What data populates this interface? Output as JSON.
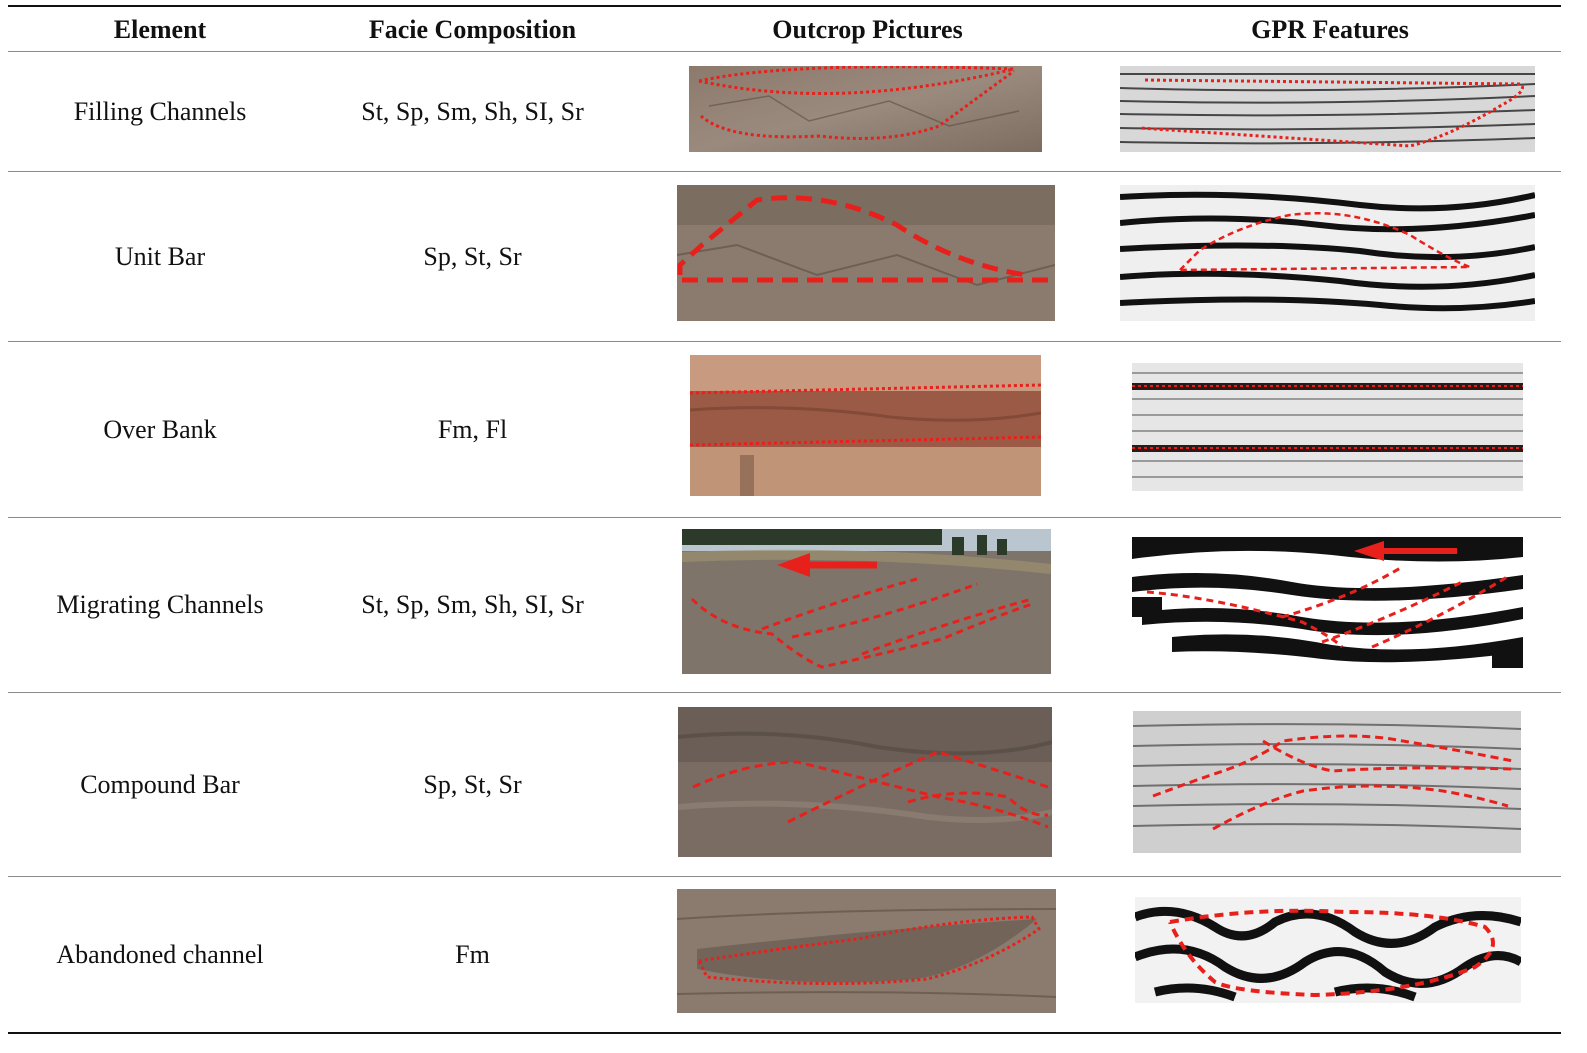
{
  "table": {
    "headers": {
      "element": "Element",
      "facies": "Facie Composition",
      "outcrop": "Outcrop Pictures",
      "gpr": "GPR Features"
    },
    "rows": [
      {
        "element": "Filling Channels",
        "facies": "St, Sp, Sm, Sh, SI, Sr",
        "outcrop": "filling-channels-outcrop-photo",
        "gpr": "filling-channels-gpr-profile"
      },
      {
        "element": "Unit Bar",
        "facies": "Sp, St, Sr",
        "outcrop": "unit-bar-outcrop-photo",
        "gpr": "unit-bar-gpr-profile"
      },
      {
        "element": "Over Bank",
        "facies": "Fm, Fl",
        "outcrop": "over-bank-outcrop-photo",
        "gpr": "over-bank-gpr-profile"
      },
      {
        "element": "Migrating Channels",
        "facies": "St, Sp, Sm, Sh, SI, Sr",
        "outcrop": "migrating-channels-outcrop-photo",
        "gpr": "migrating-channels-gpr-profile"
      },
      {
        "element": "Compound Bar",
        "facies": "Sp, St, Sr",
        "outcrop": "compound-bar-outcrop-photo",
        "gpr": "compound-bar-gpr-profile"
      },
      {
        "element": "Abandoned channel",
        "facies": "Fm",
        "outcrop": "abandoned-channel-outcrop-photo",
        "gpr": "abandoned-channel-gpr-profile"
      }
    ]
  },
  "colors": {
    "interpretation_line": "#e8201c",
    "rock_tone": "#8b7b6e",
    "overbank_tone": "#9a5a45",
    "gpr_light": "#e6e6e6",
    "gpr_dark": "#1a1a1a"
  }
}
